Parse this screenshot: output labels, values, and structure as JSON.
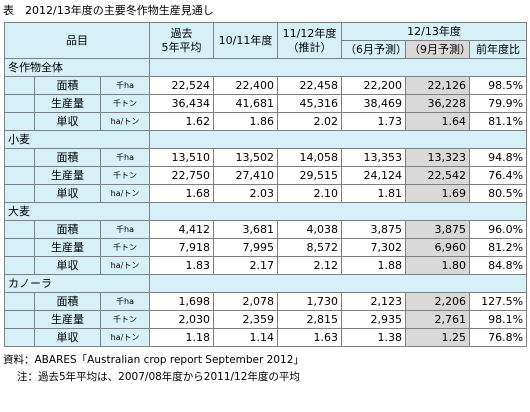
{
  "title": "表　2012/13年度の主要冬作物生産見通し",
  "header": {
    "item_label": "品目",
    "col_avg_line1": "過去",
    "col_avg_line2": "5年平均",
    "col_1011": "10/11年度",
    "col_1112_line1": "11/12年度",
    "col_1112_line2": "（推計）",
    "col_1213": "12/13年度",
    "col_june": "（6月予測）",
    "col_sept": "（9月予測）",
    "col_yoy": "前年度比"
  },
  "sections": [
    {
      "name": "冬作物全体",
      "rows": [
        {
          "label": "面積",
          "unit": "千ha",
          "avg": "22,524",
          "y1011": "22,400",
          "y1112": "22,458",
          "june": "22,200",
          "sept": "22,126",
          "yoy": "98.5%"
        },
        {
          "label": "生産量",
          "unit": "千トン",
          "avg": "36,434",
          "y1011": "41,681",
          "y1112": "45,316",
          "june": "38,469",
          "sept": "36,228",
          "yoy": "79.9%"
        },
        {
          "label": "単収",
          "unit": "ha/トン",
          "avg": "1.62",
          "y1011": "1.86",
          "y1112": "2.02",
          "june": "1.73",
          "sept": "1.64",
          "yoy": "81.1%"
        }
      ]
    },
    {
      "name": "小麦",
      "rows": [
        {
          "label": "面積",
          "unit": "千ha",
          "avg": "13,510",
          "y1011": "13,502",
          "y1112": "14,058",
          "june": "13,353",
          "sept": "13,323",
          "yoy": "94.8%"
        },
        {
          "label": "生産量",
          "unit": "千トン",
          "avg": "22,750",
          "y1011": "27,410",
          "y1112": "29,515",
          "june": "24,124",
          "sept": "22,542",
          "yoy": "76.4%"
        },
        {
          "label": "単収",
          "unit": "ha/トン",
          "avg": "1.68",
          "y1011": "2.03",
          "y1112": "2.10",
          "june": "1.81",
          "sept": "1.69",
          "yoy": "80.5%"
        }
      ]
    },
    {
      "name": "大麦",
      "rows": [
        {
          "label": "面積",
          "unit": "千ha",
          "avg": "4,412",
          "y1011": "3,681",
          "y1112": "4,038",
          "june": "3,875",
          "sept": "3,875",
          "yoy": "96.0%"
        },
        {
          "label": "生産量",
          "unit": "千トン",
          "avg": "7,918",
          "y1011": "7,995",
          "y1112": "8,572",
          "june": "7,302",
          "sept": "6,960",
          "yoy": "81.2%"
        },
        {
          "label": "単収",
          "unit": "ha/トン",
          "avg": "1.83",
          "y1011": "2.17",
          "y1112": "2.12",
          "june": "1.88",
          "sept": "1.80",
          "yoy": "84.8%"
        }
      ]
    },
    {
      "name": "カノーラ",
      "rows": [
        {
          "label": "面積",
          "unit": "千ha",
          "avg": "1,698",
          "y1011": "2,078",
          "y1112": "1,730",
          "june": "2,123",
          "sept": "2,206",
          "yoy": "127.5%"
        },
        {
          "label": "生産量",
          "unit": "千トン",
          "avg": "2,030",
          "y1011": "2,359",
          "y1112": "2,815",
          "june": "2,935",
          "sept": "2,761",
          "yoy": "98.1%"
        },
        {
          "label": "単収",
          "unit": "ha/トン",
          "avg": "1.18",
          "y1011": "1.14",
          "y1112": "1.63",
          "june": "1.38",
          "sept": "1.25",
          "yoy": "76.8%"
        }
      ]
    }
  ],
  "notes": {
    "source": "資料：ABARES「Australian crop report September 2012」",
    "note": "注：過去5年平均は、2007/08年度から2011/12年度の平均"
  },
  "colors": {
    "header_bg": "#d5f0f6",
    "highlight_bg": "#d9d9d9",
    "border": "#7f7f7f"
  }
}
